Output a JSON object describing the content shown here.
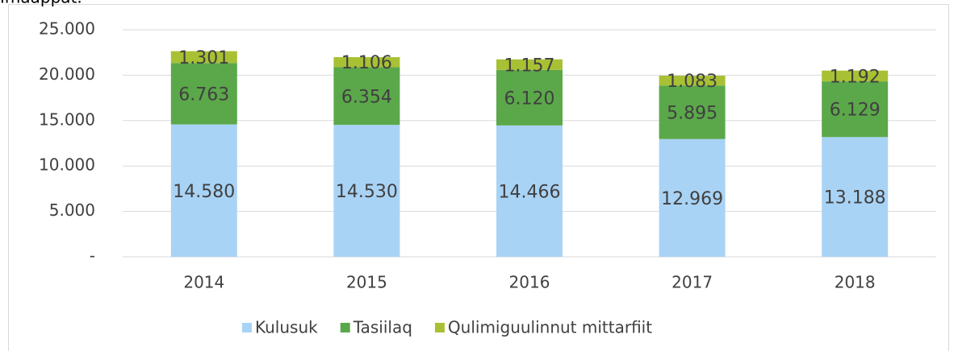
{
  "chart_data": {
    "type": "bar",
    "stacked": true,
    "title": "Imaappat.",
    "categories": [
      "2014",
      "2015",
      "2016",
      "2017",
      "2018"
    ],
    "series": [
      {
        "name": "Kulusuk",
        "color": "#a9d3f5",
        "values": [
          14580,
          14530,
          14466,
          12969,
          13188
        ],
        "value_labels": [
          "14.580",
          "14.530",
          "14.466",
          "12.969",
          "13.188"
        ]
      },
      {
        "name": "Tasiilaq",
        "color": "#5ba84a",
        "values": [
          6763,
          6354,
          6120,
          5895,
          6129
        ],
        "value_labels": [
          "6.763",
          "6.354",
          "6.120",
          "5.895",
          "6.129"
        ]
      },
      {
        "name": "Qulimiguulinnut mittarfiit",
        "color": "#a8c134",
        "values": [
          1301,
          1106,
          1157,
          1083,
          1192
        ],
        "value_labels": [
          "1.301",
          "1.106",
          "1.157",
          "1.083",
          "1.192"
        ]
      }
    ],
    "ylim": [
      0,
      25000
    ],
    "yticks": [
      {
        "value": 0,
        "label": "-"
      },
      {
        "value": 5000,
        "label": "5.000"
      },
      {
        "value": 10000,
        "label": "10.000"
      },
      {
        "value": 15000,
        "label": "15.000"
      },
      {
        "value": 20000,
        "label": "20.000"
      },
      {
        "value": 25000,
        "label": "25.000"
      }
    ],
    "grid": true,
    "legend": "bottom"
  }
}
